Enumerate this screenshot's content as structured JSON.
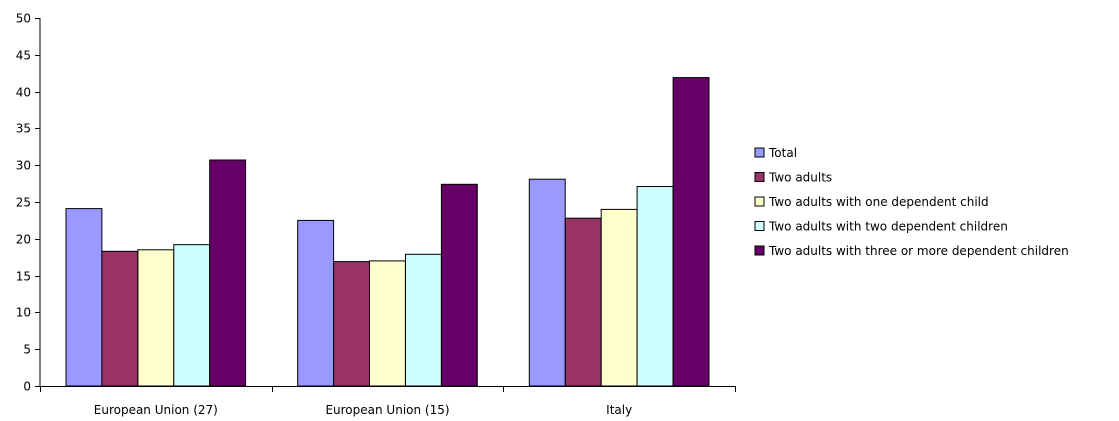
{
  "chart_data": {
    "type": "bar",
    "title": "",
    "xlabel": "",
    "ylabel": "",
    "ylim": [
      0,
      50
    ],
    "yticks": [
      "0",
      "5",
      "10",
      "15",
      "20",
      "25",
      "30",
      "35",
      "40",
      "45",
      "50"
    ],
    "grid": false,
    "legend_position": "right",
    "categories": [
      "European Union (27)",
      "European Union (15)",
      "Italy"
    ],
    "series": [
      {
        "name": "Total",
        "color": "#9999ff",
        "values": [
          24.1,
          22.5,
          28.1
        ]
      },
      {
        "name": "Two adults",
        "color": "#993366",
        "values": [
          18.3,
          16.9,
          22.8
        ]
      },
      {
        "name": "Two adults with one dependent child",
        "color": "#ffffcc",
        "values": [
          18.5,
          17.0,
          24.0
        ]
      },
      {
        "name": "Two adults with two dependent children",
        "color": "#ccffff",
        "values": [
          19.2,
          17.9,
          27.1
        ]
      },
      {
        "name": "Two adults with three or more dependent children",
        "color": "#660066",
        "values": [
          30.7,
          27.4,
          41.9
        ]
      }
    ]
  }
}
